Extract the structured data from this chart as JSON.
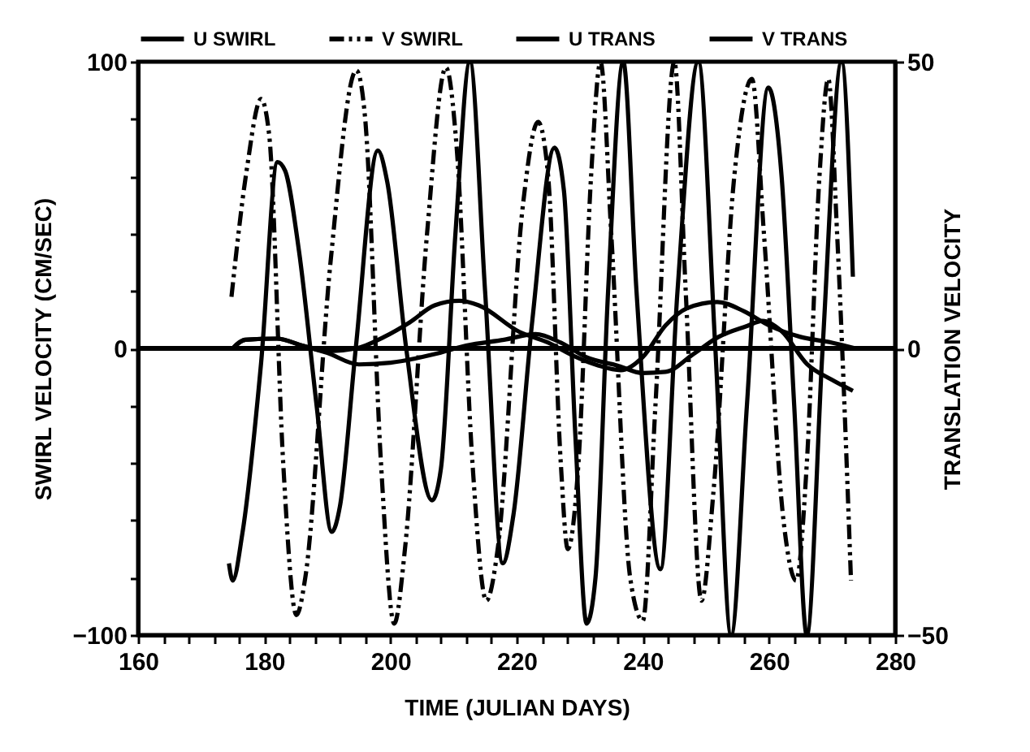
{
  "chart_data": {
    "type": "line",
    "xlabel": "TIME (JULIAN DAYS)",
    "ylabel": "SWIRL VELOCITY (CM/SEC)",
    "y2label": "TRANSLATION VELOCITY",
    "xlim": [
      160,
      280
    ],
    "ylim": [
      -100,
      100
    ],
    "y2lim": [
      -50,
      50
    ],
    "xticks": [
      160,
      {
        "value": 164,
        "label": null
      },
      {
        "value": 168,
        "label": null
      },
      {
        "value": 172,
        "label": null
      },
      {
        "value": 176,
        "label": null
      },
      180,
      {
        "value": 184,
        "label": null
      },
      {
        "value": 188,
        "label": null
      },
      {
        "value": 192,
        "label": null
      },
      {
        "value": 196,
        "label": null
      },
      200,
      {
        "value": 204,
        "label": null
      },
      {
        "value": 208,
        "label": null
      },
      {
        "value": 212,
        "label": null
      },
      {
        "value": 216,
        "label": null
      },
      220,
      {
        "value": 224,
        "label": null
      },
      {
        "value": 228,
        "label": null
      },
      {
        "value": 232,
        "label": null
      },
      {
        "value": 236,
        "label": null
      },
      240,
      {
        "value": 244,
        "label": null
      },
      {
        "value": 248,
        "label": null
      },
      {
        "value": 252,
        "label": null
      },
      {
        "value": 256,
        "label": null
      },
      260,
      {
        "value": 264,
        "label": null
      },
      {
        "value": 268,
        "label": null
      },
      {
        "value": 272,
        "label": null
      },
      {
        "value": 276,
        "label": null
      },
      280
    ],
    "yticks": [
      -100,
      {
        "value": -80,
        "label": null
      },
      {
        "value": -60,
        "label": null
      },
      {
        "value": -40,
        "label": null
      },
      {
        "value": -20,
        "label": null
      },
      0,
      {
        "value": 20,
        "label": null
      },
      {
        "value": 40,
        "label": null
      },
      {
        "value": 60,
        "label": null
      },
      {
        "value": 80,
        "label": null
      },
      100
    ],
    "y2ticks": [
      -50,
      0,
      50
    ],
    "legend": "top",
    "ref_lines": [
      {
        "axis": "y",
        "value": 0,
        "color": "#000000"
      }
    ],
    "series": [
      {
        "name": "U SWIRL",
        "color": "#000000",
        "line_style": "solid",
        "x": [
          174.4,
          175,
          176.5,
          179.5,
          182.1,
          183.3,
          185.5,
          188.3,
          190.7,
          192,
          194.5,
          198,
          199.5,
          202.5,
          206.6,
          208,
          210.3,
          212.6,
          215,
          217.8,
          219.5,
          222.5,
          226,
          227.5,
          229.3,
          231.1,
          232.5,
          234.5,
          236.9,
          239,
          242.8,
          245.5,
          248.8,
          251.5,
          254,
          256.5,
          259.9,
          262,
          264,
          266,
          268.5,
          271.5,
          273.3
        ],
        "values": [
          -75,
          -81,
          -65,
          -5,
          65,
          62,
          34,
          -20,
          -64,
          -55,
          0,
          69,
          58,
          0,
          -53,
          -42,
          40,
          100,
          20,
          -75,
          -58,
          10,
          70,
          55,
          -30,
          -96,
          -80,
          20,
          100,
          20,
          -77,
          20,
          100,
          0,
          -100,
          -20,
          91,
          60,
          -20,
          -100,
          0,
          100,
          25
        ]
      },
      {
        "name": "V SWIRL",
        "color": "#000000",
        "line_style": "dashed",
        "x": [
          174.8,
          177.2,
          179.5,
          180.8,
          183,
          185.1,
          186.5,
          190.5,
          194.6,
          196,
          198.5,
          200.6,
          202.3,
          205.8,
          208.8,
          210.5,
          213,
          215.2,
          217,
          221,
          223.4,
          225,
          227,
          228.1,
          229.8,
          231.8,
          233.3,
          235,
          238,
          240,
          242,
          245,
          246.8,
          249.3,
          251.2,
          254.5,
          257.3,
          259.2,
          262.3,
          264.3,
          266,
          268,
          269.4,
          270.8,
          273
        ],
        "values": [
          18,
          62,
          87,
          74,
          -40,
          -93,
          -80,
          30,
          97,
          80,
          -40,
          -96,
          -70,
          40,
          98,
          70,
          -40,
          -88,
          -70,
          50,
          79,
          60,
          -40,
          -70,
          -40,
          60,
          100,
          40,
          -80,
          -95,
          -20,
          100,
          20,
          -88,
          -50,
          60,
          94,
          40,
          -60,
          -81,
          -40,
          60,
          94,
          40,
          -81
        ]
      },
      {
        "name": "U TRANS",
        "color": "#000000",
        "line_style": "solid",
        "axis": "y2",
        "x": [
          175,
          177,
          182,
          186,
          190,
          194.6,
          199,
          203,
          207,
          210.9,
          214,
          220.4,
          225,
          229,
          233,
          236.5,
          240,
          243.6,
          247,
          251.8,
          256,
          260,
          265,
          270,
          273.7
        ],
        "values": [
          0,
          1.5,
          1.7,
          0.5,
          -0.5,
          0,
          2,
          4.5,
          7.5,
          8.3,
          7.5,
          2.9,
          1,
          -1.3,
          -3,
          -3.8,
          -1.5,
          4,
          7,
          8.1,
          6.5,
          4,
          2,
          1,
          0
        ]
      },
      {
        "name": "V TRANS",
        "color": "#000000",
        "line_style": "solid",
        "axis": "y2",
        "x": [
          175,
          177,
          182,
          186,
          190,
          195,
          200,
          207,
          212,
          218,
          223,
          227,
          231,
          236,
          240,
          243.6,
          248,
          252,
          256.5,
          259,
          262,
          266,
          270,
          273.3
        ],
        "values": [
          0,
          1.5,
          1.7,
          0.5,
          -0.8,
          -2.8,
          -2.5,
          -1,
          0.5,
          1.5,
          2.5,
          1,
          -1.5,
          -3,
          -4.3,
          -4.1,
          -1,
          2,
          3.9,
          4.8,
          3,
          -2.7,
          -5.5,
          -7.4
        ]
      }
    ]
  }
}
